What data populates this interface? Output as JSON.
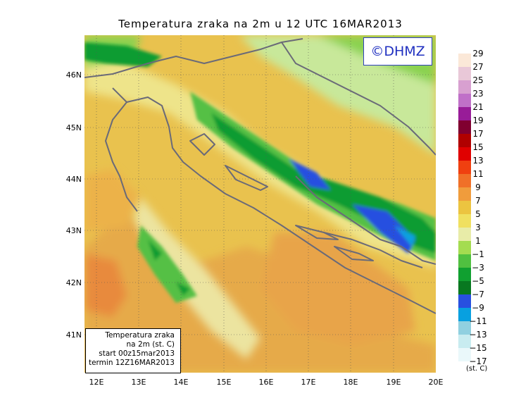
{
  "title": "Temperatura zraka na 2m u 12 UTC 16MAR2013",
  "badge": "©DHMZ",
  "lat_ticks": [
    "46N",
    "45N",
    "44N",
    "43N",
    "42N",
    "41N"
  ],
  "lon_ticks": [
    "12E",
    "13E",
    "14E",
    "15E",
    "16E",
    "17E",
    "18E",
    "19E",
    "20E"
  ],
  "legend": {
    "line1": "Temperatura zraka",
    "line2": "na 2m (st. C)",
    "line3": "start 00z15mar2013",
    "line4": "termin 12Z16MAR2013"
  },
  "colorbar": {
    "labels": [
      "29",
      "27",
      "25",
      "23",
      "21",
      "19",
      "17",
      "15",
      "13",
      "11",
      "9",
      "7",
      "5",
      "3",
      "1",
      "−1",
      "−3",
      "−5",
      "−7",
      "−9",
      "−11",
      "−13",
      "−15",
      "−17"
    ],
    "colors": [
      "#fbe8d8",
      "#e9c8d8",
      "#d8a0d0",
      "#c070c8",
      "#981c98",
      "#800030",
      "#b00000",
      "#e00000",
      "#f04010",
      "#f07028",
      "#f09c3c",
      "#ecc440",
      "#f0e060",
      "#e8eca8",
      "#a4dc50",
      "#50c040",
      "#10a030",
      "#087820",
      "#2850e0",
      "#08a0e0",
      "#90d0e0",
      "#c8ecf0",
      "#eaf8fa"
    ],
    "unit": "(st. C)"
  }
}
